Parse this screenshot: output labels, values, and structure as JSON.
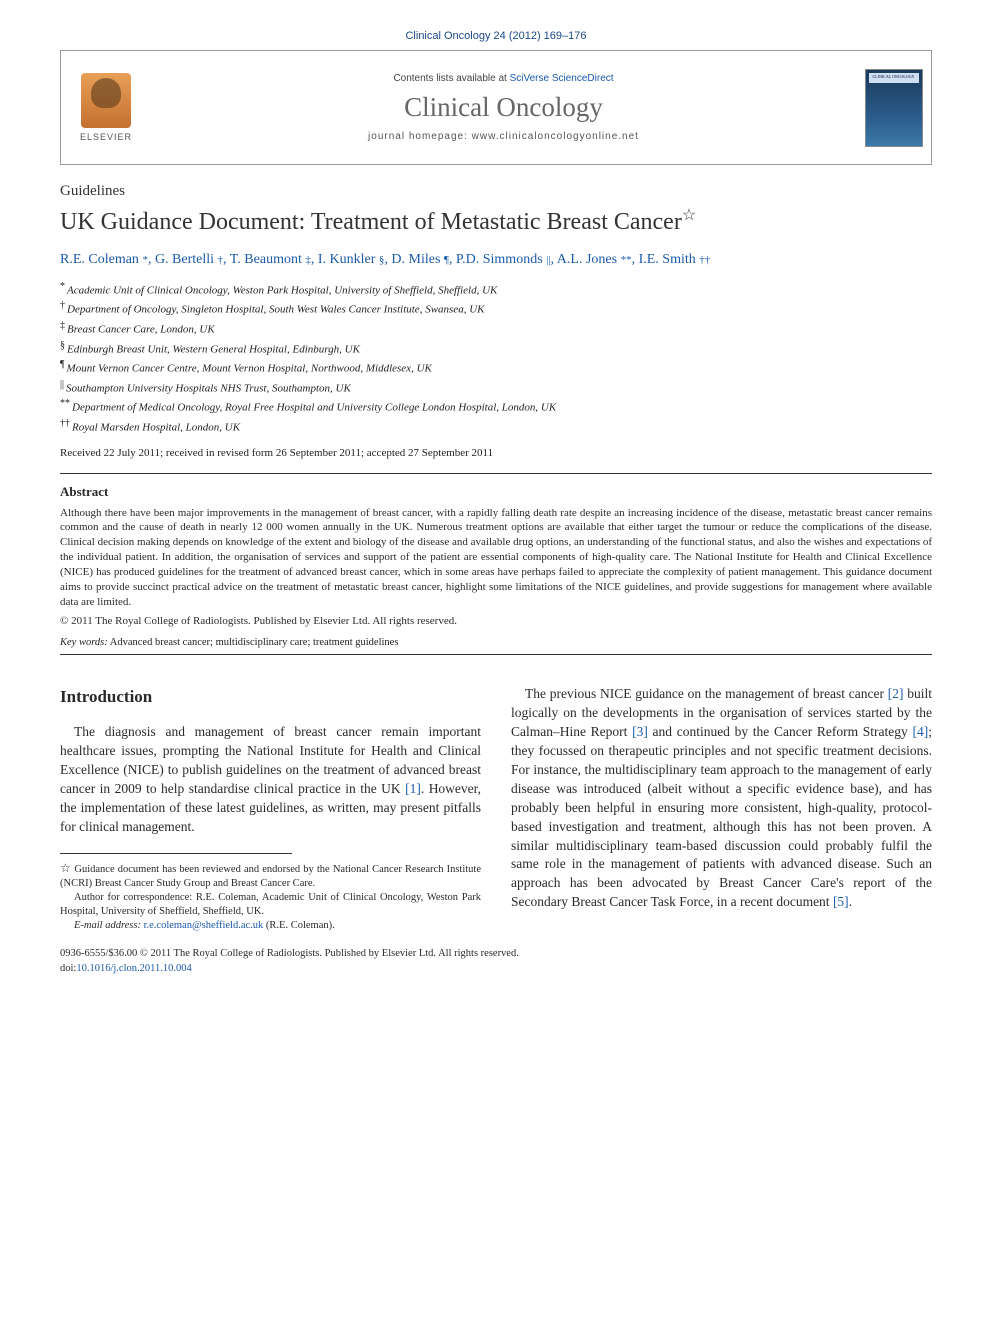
{
  "colors": {
    "link": "#1a5aaa",
    "text": "#2a2a2a",
    "muted": "#666666",
    "rule": "#333333",
    "background": "#ffffff"
  },
  "typography": {
    "citation_fontsize": 11,
    "journal_name_fontsize": 27,
    "article_type_fontsize": 15,
    "title_fontsize": 24,
    "authors_fontsize": 14,
    "affiliation_fontsize": 11,
    "abstract_fontsize": 11,
    "body_fontsize": 13.5,
    "section_heading_fontsize": 17,
    "footnote_fontsize": 10.5
  },
  "citation": "Clinical Oncology 24 (2012) 169–176",
  "header": {
    "contents_prefix": "Contents lists available at ",
    "contents_link": "SciVerse ScienceDirect",
    "journal_name": "Clinical Oncology",
    "homepage_prefix": "journal homepage: ",
    "homepage_url": "www.clinicaloncologyonline.net",
    "publisher_label": "ELSEVIER",
    "cover_label": "CLINICAL ONCOLOGY"
  },
  "article_type": "Guidelines",
  "title": "UK Guidance Document: Treatment of Metastatic Breast Cancer",
  "title_note_symbol": "☆",
  "authors": [
    {
      "name": "R.E. Coleman",
      "sym": "*"
    },
    {
      "name": "G. Bertelli",
      "sym": "†"
    },
    {
      "name": "T. Beaumont",
      "sym": "‡"
    },
    {
      "name": "I. Kunkler",
      "sym": "§"
    },
    {
      "name": "D. Miles",
      "sym": "¶"
    },
    {
      "name": "P.D. Simmonds",
      "sym": "||"
    },
    {
      "name": "A.L. Jones",
      "sym": "**"
    },
    {
      "name": "I.E. Smith",
      "sym": "††"
    }
  ],
  "affiliations": [
    {
      "sym": "*",
      "text": "Academic Unit of Clinical Oncology, Weston Park Hospital, University of Sheffield, Sheffield, UK"
    },
    {
      "sym": "†",
      "text": "Department of Oncology, Singleton Hospital, South West Wales Cancer Institute, Swansea, UK"
    },
    {
      "sym": "‡",
      "text": "Breast Cancer Care, London, UK"
    },
    {
      "sym": "§",
      "text": "Edinburgh Breast Unit, Western General Hospital, Edinburgh, UK"
    },
    {
      "sym": "¶",
      "text": "Mount Vernon Cancer Centre, Mount Vernon Hospital, Northwood, Middlesex, UK"
    },
    {
      "sym": "||",
      "text": "Southampton University Hospitals NHS Trust, Southampton, UK"
    },
    {
      "sym": "**",
      "text": "Department of Medical Oncology, Royal Free Hospital and University College London Hospital, London, UK"
    },
    {
      "sym": "††",
      "text": "Royal Marsden Hospital, London, UK"
    }
  ],
  "history": "Received 22 July 2011; received in revised form 26 September 2011; accepted 27 September 2011",
  "abstract": {
    "heading": "Abstract",
    "body": "Although there have been major improvements in the management of breast cancer, with a rapidly falling death rate despite an increasing incidence of the disease, metastatic breast cancer remains common and the cause of death in nearly 12 000 women annually in the UK. Numerous treatment options are available that either target the tumour or reduce the complications of the disease. Clinical decision making depends on knowledge of the extent and biology of the disease and available drug options, an understanding of the functional status, and also the wishes and expectations of the individual patient. In addition, the organisation of services and support of the patient are essential components of high-quality care. The National Institute for Health and Clinical Excellence (NICE) has produced guidelines for the treatment of advanced breast cancer, which in some areas have perhaps failed to appreciate the complexity of patient management. This guidance document aims to provide succinct practical advice on the treatment of metastatic breast cancer, highlight some limitations of the NICE guidelines, and provide suggestions for management where available data are limited.",
    "copyright": "© 2011 The Royal College of Radiologists. Published by Elsevier Ltd. All rights reserved."
  },
  "keywords": {
    "label": "Key words:",
    "text": "Advanced breast cancer; multidisciplinary care; treatment guidelines"
  },
  "body": {
    "intro_heading": "Introduction",
    "col1_para1_a": "The diagnosis and management of breast cancer remain important healthcare issues, prompting the National Institute for Health and Clinical Excellence (NICE) to publish guidelines on the treatment of advanced breast cancer in 2009 to help standardise clinical practice in the UK ",
    "col1_para1_ref1": "[1]",
    "col1_para1_b": ". However, the implementation of these latest guidelines, as written, may present pitfalls for clinical management.",
    "col2_para1_a": "The previous NICE guidance on the management of breast cancer ",
    "col2_para1_ref2": "[2]",
    "col2_para1_b": " built logically on the developments in the organisation of services started by the Calman–Hine Report ",
    "col2_para1_ref3": "[3]",
    "col2_para1_c": " and continued by the Cancer Reform Strategy ",
    "col2_para1_ref4": "[4]",
    "col2_para1_d": "; they focussed on therapeutic principles and not specific treatment decisions. For instance, the multidisciplinary team approach to the management of early disease was introduced (albeit without a specific evidence base), and has probably been helpful in ensuring more consistent, high-quality, protocol-based investigation and treatment, although this has not been proven. A similar multidisciplinary team-based discussion could probably fulfil the same role in the management of patients with advanced disease. Such an approach has been advocated by Breast Cancer Care's report of the Secondary Breast Cancer Task Force, in a recent document ",
    "col2_para1_ref5": "[5]",
    "col2_para1_e": "."
  },
  "footnotes": {
    "note_sym": "☆",
    "note_text": " Guidance document has been reviewed and endorsed by the National Cancer Research Institute (NCRI) Breast Cancer Study Group and Breast Cancer Care.",
    "corr_label": "Author for correspondence: ",
    "corr_text": "R.E. Coleman, Academic Unit of Clinical Oncology, Weston Park Hospital, University of Sheffield, Sheffield, UK.",
    "email_label": "E-mail address:",
    "email": "r.e.coleman@sheffield.ac.uk",
    "email_suffix": " (R.E. Coleman)."
  },
  "bottom": {
    "line1": "0936-6555/$36.00 © 2011 The Royal College of Radiologists. Published by Elsevier Ltd. All rights reserved.",
    "doi_prefix": "doi:",
    "doi": "10.1016/j.clon.2011.10.004"
  }
}
